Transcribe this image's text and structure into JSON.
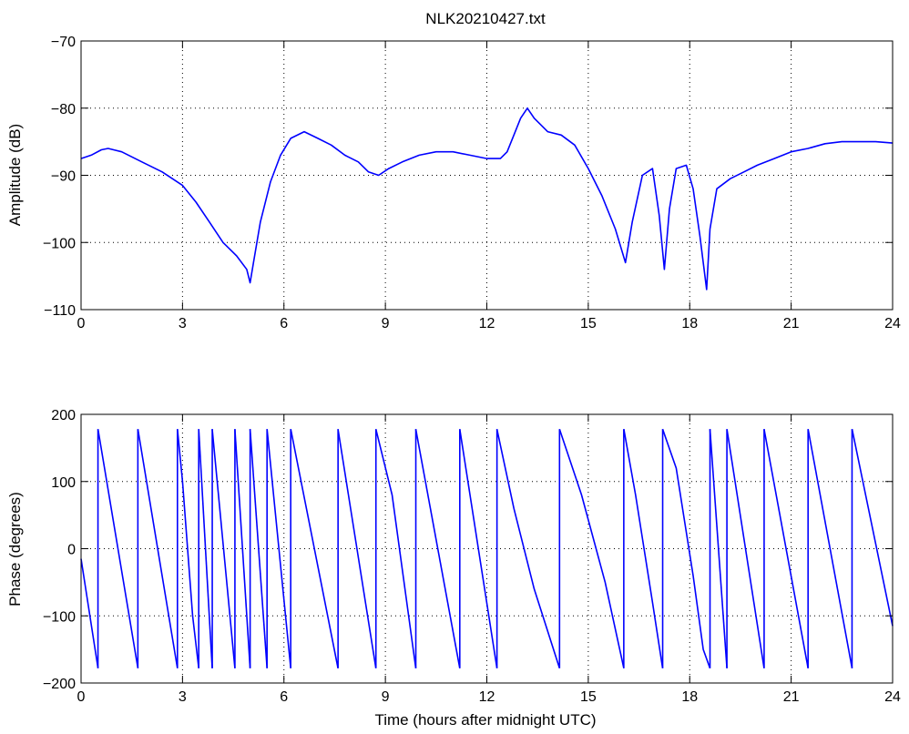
{
  "chart_data": [
    {
      "type": "line",
      "title": "NLK20210427.txt",
      "xlabel": "",
      "ylabel": "Amplitude (dB)",
      "xlim": [
        0,
        24
      ],
      "ylim": [
        -110,
        -70
      ],
      "x_ticks": [
        0,
        3,
        6,
        9,
        12,
        15,
        18,
        21,
        24
      ],
      "y_ticks": [
        -110,
        -100,
        -90,
        -80,
        -70
      ],
      "x_tick_labels": [
        "0",
        "3",
        "6",
        "9",
        "12",
        "15",
        "18",
        "21",
        "24"
      ],
      "y_tick_labels": [
        "−110",
        "−100",
        "−90",
        "−80",
        "−70"
      ],
      "grid": true,
      "color": "#0000ff",
      "x": [
        0,
        0.3,
        0.6,
        0.8,
        1.2,
        1.8,
        2.4,
        3.0,
        3.4,
        3.8,
        4.2,
        4.6,
        4.9,
        5.0,
        5.1,
        5.3,
        5.6,
        5.9,
        6.2,
        6.6,
        7.0,
        7.4,
        7.8,
        8.2,
        8.5,
        8.8,
        9.1,
        9.5,
        10.0,
        10.5,
        11.0,
        11.5,
        12.0,
        12.4,
        12.6,
        12.8,
        13.0,
        13.2,
        13.4,
        13.8,
        14.2,
        14.6,
        15.0,
        15.4,
        15.8,
        16.1,
        16.3,
        16.6,
        16.9,
        17.1,
        17.25,
        17.4,
        17.6,
        17.9,
        18.1,
        18.3,
        18.5,
        18.6,
        18.8,
        19.2,
        19.6,
        20.0,
        20.5,
        21.0,
        21.5,
        22.0,
        22.5,
        23.0,
        23.5,
        24.0
      ],
      "values": [
        -87.5,
        -87,
        -86.2,
        -86,
        -86.5,
        -88,
        -89.5,
        -91.5,
        -94,
        -97,
        -100,
        -102,
        -104,
        -106,
        -103,
        -97,
        -91,
        -87,
        -84.5,
        -83.5,
        -84.5,
        -85.5,
        -87,
        -88,
        -89.5,
        -90,
        -89,
        -88,
        -87,
        -86.5,
        -86.5,
        -87,
        -87.5,
        -87.5,
        -86.5,
        -84,
        -81.5,
        -80,
        -81.5,
        -83.5,
        -84,
        -85.5,
        -89,
        -93,
        -98,
        -103,
        -97,
        -90,
        -89,
        -96,
        -104,
        -95,
        -89,
        -88.5,
        -92,
        -99,
        -107,
        -98,
        -92,
        -90.5,
        -89.5,
        -88.5,
        -87.5,
        -86.5,
        -86,
        -85.3,
        -85,
        -85,
        -85,
        -85.2
      ]
    },
    {
      "type": "line",
      "title": "",
      "xlabel": "Time (hours after midnight UTC)",
      "ylabel": "Phase (degrees)",
      "xlim": [
        0,
        24
      ],
      "ylim": [
        -200,
        200
      ],
      "x_ticks": [
        0,
        3,
        6,
        9,
        12,
        15,
        18,
        21,
        24
      ],
      "y_ticks": [
        -200,
        -100,
        0,
        100,
        200
      ],
      "x_tick_labels": [
        "0",
        "3",
        "6",
        "9",
        "12",
        "15",
        "18",
        "21",
        "24"
      ],
      "y_tick_labels": [
        "−200",
        "−100",
        "0",
        "100",
        "200"
      ],
      "grid": true,
      "color": "#0000ff",
      "segments": [
        {
          "x": [
            0,
            0.5
          ],
          "values": [
            -15,
            -178
          ]
        },
        {
          "x": [
            0.5,
            1.68
          ],
          "values": [
            178,
            -178
          ]
        },
        {
          "x": [
            1.68,
            2.85
          ],
          "values": [
            178,
            -178
          ]
        },
        {
          "x": [
            2.85,
            3.0,
            3.3,
            3.48
          ],
          "values": [
            178,
            100,
            -100,
            -178
          ]
        },
        {
          "x": [
            3.48,
            3.88
          ],
          "values": [
            178,
            -178
          ]
        },
        {
          "x": [
            3.88,
            4.55
          ],
          "values": [
            178,
            -178
          ]
        },
        {
          "x": [
            4.55,
            5.0
          ],
          "values": [
            178,
            -178
          ]
        },
        {
          "x": [
            5.0,
            5.5
          ],
          "values": [
            178,
            -178
          ]
        },
        {
          "x": [
            5.5,
            6.2
          ],
          "values": [
            178,
            -178
          ]
        },
        {
          "x": [
            6.2,
            7.6
          ],
          "values": [
            178,
            -178
          ]
        },
        {
          "x": [
            7.6,
            8.72
          ],
          "values": [
            178,
            -178
          ]
        },
        {
          "x": [
            8.72,
            9.2,
            9.9
          ],
          "values": [
            178,
            80,
            -178
          ]
        },
        {
          "x": [
            9.9,
            11.2
          ],
          "values": [
            178,
            -178
          ]
        },
        {
          "x": [
            11.2,
            12.3
          ],
          "values": [
            178,
            -178
          ]
        },
        {
          "x": [
            12.3,
            12.8,
            13.4,
            14.15
          ],
          "values": [
            178,
            60,
            -60,
            -178
          ]
        },
        {
          "x": [
            14.15,
            14.8,
            15.5,
            16.05
          ],
          "values": [
            178,
            80,
            -50,
            -178
          ]
        },
        {
          "x": [
            16.05,
            16.4,
            16.9,
            17.2
          ],
          "values": [
            178,
            80,
            -80,
            -178
          ]
        },
        {
          "x": [
            17.2,
            17.6,
            18.1,
            18.4,
            18.6
          ],
          "values": [
            178,
            120,
            -40,
            -150,
            -178
          ]
        },
        {
          "x": [
            18.6,
            19.1
          ],
          "values": [
            178,
            -178
          ]
        },
        {
          "x": [
            19.1,
            20.2
          ],
          "values": [
            178,
            -178
          ]
        },
        {
          "x": [
            20.2,
            21.5
          ],
          "values": [
            178,
            -178
          ]
        },
        {
          "x": [
            21.5,
            22.8
          ],
          "values": [
            178,
            -178
          ]
        },
        {
          "x": [
            22.8,
            24.0
          ],
          "values": [
            178,
            -115
          ]
        }
      ]
    }
  ]
}
